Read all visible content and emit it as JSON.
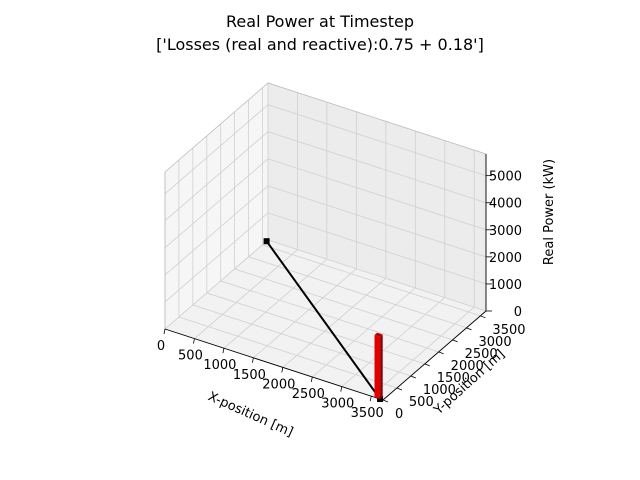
{
  "chart_data": {
    "type": "bar3d",
    "title": "Real Power at Timestep",
    "subtitle": "['Losses (real and reactive):0.75 + 0.18']",
    "xlabel": "X-position [m]",
    "ylabel": "Y-position [m]",
    "zlabel": "Real Power (kW)",
    "xlim": [
      0,
      3700
    ],
    "ylim": [
      0,
      3700
    ],
    "zlim": [
      0,
      5800
    ],
    "x_ticks": [
      "0",
      "500",
      "1000",
      "1500",
      "2000",
      "2500",
      "3000",
      "3500"
    ],
    "y_ticks": [
      "0",
      "500",
      "1000",
      "1500",
      "2000",
      "2500",
      "3000",
      "3500"
    ],
    "z_ticks": [
      "0",
      "1000",
      "2000",
      "3000",
      "4000",
      "5000"
    ],
    "bars": [
      {
        "x": 3650,
        "y": 0,
        "z": 2300,
        "color": "#e00000"
      }
    ],
    "line": {
      "points": [
        [
          0,
          3650
        ],
        [
          3650,
          0
        ]
      ],
      "color": "#000000"
    },
    "nodes": [
      [
        0,
        3650
      ],
      [
        3650,
        0
      ]
    ],
    "grid": true
  }
}
